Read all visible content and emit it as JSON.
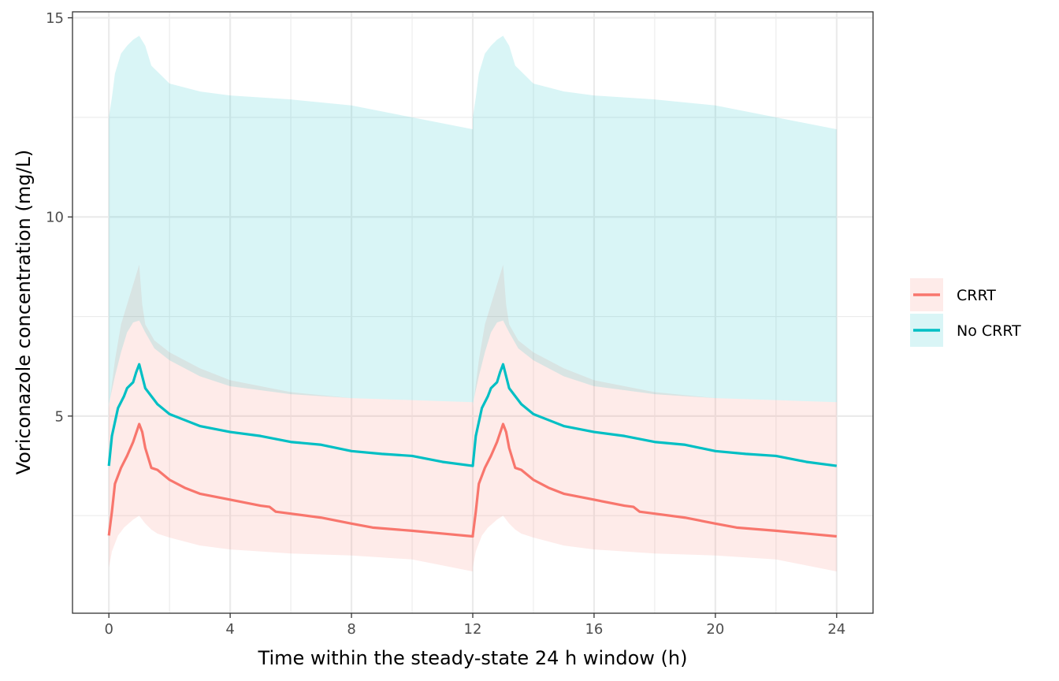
{
  "chart_data": {
    "type": "line",
    "xlabel": "Time within the steady-state 24 h window (h)",
    "ylabel": "Voriconazole concentration (mg/L)",
    "xlim": [
      -1.2,
      25.2
    ],
    "ylim": [
      0.05,
      15.15
    ],
    "x_ticks": [
      0,
      4,
      8,
      12,
      16,
      20,
      24
    ],
    "y_ticks": [
      5,
      10,
      15
    ],
    "grid": true,
    "legend_position": "right",
    "series": [
      {
        "name": "CRRT",
        "color": "#F8766D",
        "median": [
          [
            0,
            2.0
          ],
          [
            0.1,
            2.6
          ],
          [
            0.2,
            3.3
          ],
          [
            0.4,
            3.7
          ],
          [
            0.6,
            4.0
          ],
          [
            0.8,
            4.35
          ],
          [
            1.0,
            4.8
          ],
          [
            1.1,
            4.6
          ],
          [
            1.2,
            4.2
          ],
          [
            1.4,
            3.7
          ],
          [
            1.6,
            3.65
          ],
          [
            2.0,
            3.4
          ],
          [
            2.5,
            3.2
          ],
          [
            3.0,
            3.05
          ],
          [
            4.0,
            2.9
          ],
          [
            5.0,
            2.75
          ],
          [
            5.3,
            2.72
          ],
          [
            5.5,
            2.6
          ],
          [
            6.0,
            2.55
          ],
          [
            7.0,
            2.45
          ],
          [
            8.0,
            2.3
          ],
          [
            8.7,
            2.2
          ],
          [
            10.0,
            2.12
          ],
          [
            11.0,
            2.05
          ],
          [
            12.0,
            1.98
          ]
        ],
        "ci_upper": [
          [
            0,
            5.2
          ],
          [
            0.2,
            6.4
          ],
          [
            0.4,
            7.3
          ],
          [
            0.6,
            7.8
          ],
          [
            0.8,
            8.3
          ],
          [
            1.0,
            8.8
          ],
          [
            1.1,
            7.8
          ],
          [
            1.2,
            7.3
          ],
          [
            1.5,
            6.9
          ],
          [
            2.0,
            6.6
          ],
          [
            3.0,
            6.2
          ],
          [
            4.0,
            5.9
          ],
          [
            6.0,
            5.6
          ],
          [
            8.0,
            5.45
          ],
          [
            10.0,
            5.4
          ],
          [
            12.0,
            5.35
          ]
        ],
        "ci_lower": [
          [
            0,
            1.2
          ],
          [
            0.1,
            1.6
          ],
          [
            0.3,
            2.0
          ],
          [
            0.5,
            2.2
          ],
          [
            0.8,
            2.4
          ],
          [
            1.0,
            2.5
          ],
          [
            1.2,
            2.3
          ],
          [
            1.4,
            2.15
          ],
          [
            1.6,
            2.05
          ],
          [
            2.0,
            1.95
          ],
          [
            3.0,
            1.75
          ],
          [
            4.0,
            1.65
          ],
          [
            5.0,
            1.6
          ],
          [
            6.0,
            1.55
          ],
          [
            8.0,
            1.5
          ],
          [
            10.0,
            1.4
          ],
          [
            11.0,
            1.25
          ],
          [
            12.0,
            1.1
          ]
        ]
      },
      {
        "name": "No CRRT",
        "color": "#00BFC4",
        "median": [
          [
            0,
            3.75
          ],
          [
            0.1,
            4.5
          ],
          [
            0.3,
            5.2
          ],
          [
            0.5,
            5.5
          ],
          [
            0.6,
            5.7
          ],
          [
            0.8,
            5.85
          ],
          [
            0.9,
            6.1
          ],
          [
            1.0,
            6.3
          ],
          [
            1.1,
            6.0
          ],
          [
            1.2,
            5.7
          ],
          [
            1.4,
            5.5
          ],
          [
            1.6,
            5.3
          ],
          [
            2.0,
            5.05
          ],
          [
            2.5,
            4.9
          ],
          [
            3.0,
            4.75
          ],
          [
            4.0,
            4.6
          ],
          [
            5.0,
            4.5
          ],
          [
            6.0,
            4.35
          ],
          [
            7.0,
            4.28
          ],
          [
            8.0,
            4.12
          ],
          [
            9.0,
            4.05
          ],
          [
            10.0,
            4.0
          ],
          [
            11.0,
            3.85
          ],
          [
            12.0,
            3.75
          ]
        ],
        "ci_upper": [
          [
            0,
            12.5
          ],
          [
            0.1,
            13.0
          ],
          [
            0.2,
            13.6
          ],
          [
            0.4,
            14.1
          ],
          [
            0.6,
            14.3
          ],
          [
            0.8,
            14.45
          ],
          [
            1.0,
            14.55
          ],
          [
            1.2,
            14.3
          ],
          [
            1.4,
            13.8
          ],
          [
            1.8,
            13.5
          ],
          [
            2.0,
            13.35
          ],
          [
            3.0,
            13.15
          ],
          [
            4.0,
            13.05
          ],
          [
            6.0,
            12.95
          ],
          [
            8.0,
            12.8
          ],
          [
            10.0,
            12.5
          ],
          [
            12.0,
            12.2
          ]
        ],
        "ci_lower": [
          [
            0,
            5.3
          ],
          [
            0.2,
            6.0
          ],
          [
            0.4,
            6.6
          ],
          [
            0.6,
            7.1
          ],
          [
            0.8,
            7.35
          ],
          [
            1.0,
            7.4
          ],
          [
            1.2,
            7.1
          ],
          [
            1.5,
            6.7
          ],
          [
            2.0,
            6.4
          ],
          [
            3.0,
            6.0
          ],
          [
            4.0,
            5.75
          ],
          [
            6.0,
            5.55
          ],
          [
            8.0,
            5.45
          ],
          [
            10.0,
            5.4
          ],
          [
            12.0,
            5.35
          ]
        ]
      }
    ]
  }
}
